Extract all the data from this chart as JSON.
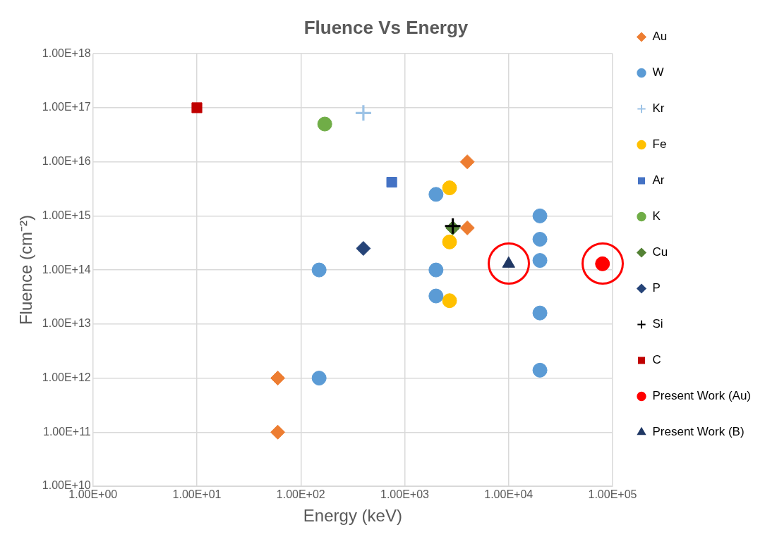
{
  "chart_data": {
    "type": "scatter",
    "title": "Fluence Vs Energy",
    "xlabel": "Energy (keV)",
    "ylabel": "Fluence (cm⁻²)",
    "log": "xy",
    "grid": true,
    "legend": "right",
    "xlim": [
      1,
      100000
    ],
    "xticks": [
      {
        "value": 1,
        "label": "1.00E+00"
      },
      {
        "value": 10,
        "label": "1.00E+01"
      },
      {
        "value": 100,
        "label": "1.00E+02"
      },
      {
        "value": 1000,
        "label": "1.00E+03"
      },
      {
        "value": 10000,
        "label": "1.00E+04"
      },
      {
        "value": 100000,
        "label": "1.00E+05"
      }
    ],
    "ylim": [
      10000000000.0,
      1e+18
    ],
    "yticks": [
      {
        "value": 10000000000.0,
        "label": "1.00E+10"
      },
      {
        "value": 100000000000.0,
        "label": "1.00E+11"
      },
      {
        "value": 1000000000000.0,
        "label": "1.00E+12"
      },
      {
        "value": 10000000000000.0,
        "label": "1.00E+13"
      },
      {
        "value": 100000000000000.0,
        "label": "1.00E+14"
      },
      {
        "value": 1000000000000000.0,
        "label": "1.00E+15"
      },
      {
        "value": 1e+16,
        "label": "1.00E+16"
      },
      {
        "value": 1e+17,
        "label": "1.00E+17"
      },
      {
        "value": 1e+18,
        "label": "1.00E+18"
      }
    ],
    "series": [
      {
        "name": "Au",
        "color": "#ed7d31",
        "marker": "diamond",
        "x": [
          4000,
          4000,
          60,
          60
        ],
        "values": [
          1e+16,
          600000000000000.0,
          1000000000000.0,
          100000000000.0
        ]
      },
      {
        "name": "W",
        "color": "#5b9bd5",
        "marker": "circle",
        "x": [
          150,
          150,
          2000,
          2000,
          2000,
          20000,
          20000,
          20000,
          20000,
          20000
        ],
        "values": [
          100000000000000.0,
          1000000000000.0,
          2500000000000000.0,
          100000000000000.0,
          33000000000000.0,
          1000000000000000.0,
          370000000000000.0,
          150000000000000.0,
          16000000000000.0,
          1400000000000.0
        ]
      },
      {
        "name": "Kr",
        "color": "#9dc3e6",
        "marker": "cross",
        "x": [
          400
        ],
        "values": [
          8e+16
        ]
      },
      {
        "name": "Fe",
        "color": "#ffc000",
        "marker": "circle",
        "x": [
          2700,
          2700,
          2700
        ],
        "values": [
          3300000000000000.0,
          330000000000000.0,
          27000000000000.0
        ]
      },
      {
        "name": "Ar",
        "color": "#4472c4",
        "marker": "square",
        "x": [
          750
        ],
        "values": [
          4200000000000000.0
        ]
      },
      {
        "name": "K",
        "color": "#70ad47",
        "marker": "circle",
        "x": [
          170
        ],
        "values": [
          5e+16
        ]
      },
      {
        "name": "Cu",
        "color": "#548235",
        "marker": "diamond",
        "x": [
          2900
        ],
        "values": [
          600000000000000.0
        ]
      },
      {
        "name": "P",
        "color": "#264478",
        "marker": "diamond",
        "x": [
          400
        ],
        "values": [
          250000000000000.0
        ]
      },
      {
        "name": "Si",
        "color": "#000000",
        "marker": "cross",
        "x": [
          2900
        ],
        "values": [
          650000000000000.0
        ]
      },
      {
        "name": "C",
        "color": "#c00000",
        "marker": "square",
        "x": [
          10
        ],
        "values": [
          1e+17
        ]
      },
      {
        "name": "Present Work (Au)",
        "color": "#ff0000",
        "marker": "circle",
        "x": [
          80000
        ],
        "values": [
          130000000000000.0
        ]
      },
      {
        "name": "Present Work (B)",
        "color": "#203864",
        "marker": "triangle",
        "x": [
          10000
        ],
        "values": [
          130000000000000.0
        ]
      }
    ]
  }
}
